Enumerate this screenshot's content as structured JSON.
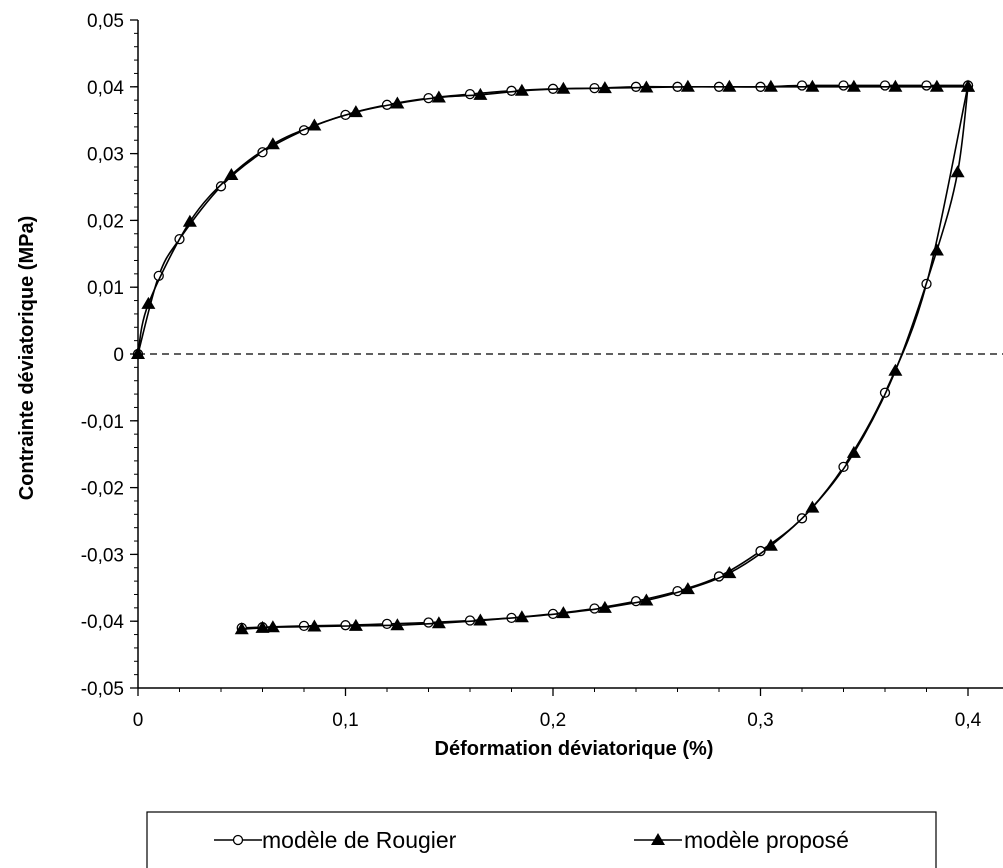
{
  "chart_data": {
    "type": "line",
    "title": "",
    "xlabel": "Déformation déviatorique (%)",
    "ylabel": "Contrainte déviatorique (MPa)",
    "xlim": [
      0,
      0.4
    ],
    "ylim": [
      -0.05,
      0.05
    ],
    "x_ticks": [
      0,
      0.1,
      0.2,
      0.3,
      0.4
    ],
    "x_tick_labels": [
      "0",
      "0,1",
      "0,2",
      "0,3",
      "0,4"
    ],
    "y_ticks": [
      0.05,
      0.04,
      0.03,
      0.02,
      0.01,
      0,
      -0.01,
      -0.02,
      -0.03,
      -0.04,
      -0.05
    ],
    "y_tick_labels": [
      "0,05",
      "0,04",
      "0,03",
      "0,02",
      "0,01",
      "0",
      "-0,01",
      "-0,02",
      "-0,03",
      "-0,04",
      "-0,05"
    ],
    "zero_line": "dashed",
    "grid": false,
    "legend_position": "bottom",
    "series": [
      {
        "name": "modèle de Rougier",
        "marker": "open-circle",
        "color": "#000000",
        "loading": {
          "x": [
            0,
            0.01,
            0.02,
            0.04,
            0.06,
            0.08,
            0.1,
            0.12,
            0.14,
            0.16,
            0.18,
            0.2,
            0.22,
            0.24,
            0.26,
            0.28,
            0.3,
            0.32,
            0.34,
            0.36,
            0.38,
            0.4
          ],
          "y": [
            0,
            0.0117,
            0.0172,
            0.0251,
            0.0302,
            0.0335,
            0.0358,
            0.0373,
            0.0383,
            0.0389,
            0.0394,
            0.0397,
            0.0398,
            0.04,
            0.04,
            0.04,
            0.04,
            0.0402,
            0.0402,
            0.0402,
            0.0402,
            0.0402
          ]
        },
        "unloading": {
          "x": [
            0.4,
            0.38,
            0.36,
            0.34,
            0.32,
            0.3,
            0.28,
            0.26,
            0.24,
            0.22,
            0.2,
            0.18,
            0.16,
            0.14,
            0.12,
            0.1,
            0.08,
            0.06,
            0.05
          ],
          "y": [
            0.0402,
            0.0105,
            -0.0058,
            -0.0169,
            -0.0246,
            -0.0295,
            -0.0333,
            -0.0355,
            -0.037,
            -0.0381,
            -0.0389,
            -0.0395,
            -0.0399,
            -0.0402,
            -0.0404,
            -0.0406,
            -0.0407,
            -0.0409,
            -0.041
          ]
        }
      },
      {
        "name": "modèle proposé",
        "marker": "filled-triangle",
        "color": "#000000",
        "loading": {
          "x": [
            0,
            0.005,
            0.025,
            0.045,
            0.065,
            0.085,
            0.105,
            0.125,
            0.145,
            0.165,
            0.185,
            0.205,
            0.225,
            0.245,
            0.265,
            0.285,
            0.305,
            0.325,
            0.345,
            0.365,
            0.385,
            0.4
          ],
          "y": [
            0,
            0.0075,
            0.0198,
            0.0268,
            0.0314,
            0.0342,
            0.0362,
            0.0375,
            0.0384,
            0.0388,
            0.0394,
            0.0397,
            0.0398,
            0.0399,
            0.04,
            0.04,
            0.04,
            0.04,
            0.04,
            0.04,
            0.04,
            0.04
          ]
        },
        "unloading": {
          "x": [
            0.4,
            0.395,
            0.385,
            0.365,
            0.345,
            0.325,
            0.305,
            0.285,
            0.265,
            0.245,
            0.225,
            0.205,
            0.185,
            0.165,
            0.145,
            0.125,
            0.105,
            0.085,
            0.065,
            0.06,
            0.05
          ],
          "y": [
            0.04,
            0.0272,
            0.0155,
            -0.0025,
            -0.0148,
            -0.023,
            -0.0287,
            -0.0328,
            -0.0352,
            -0.0369,
            -0.038,
            -0.0388,
            -0.0394,
            -0.0399,
            -0.0403,
            -0.0406,
            -0.0407,
            -0.0408,
            -0.0409,
            -0.041,
            -0.0412
          ]
        }
      }
    ]
  }
}
